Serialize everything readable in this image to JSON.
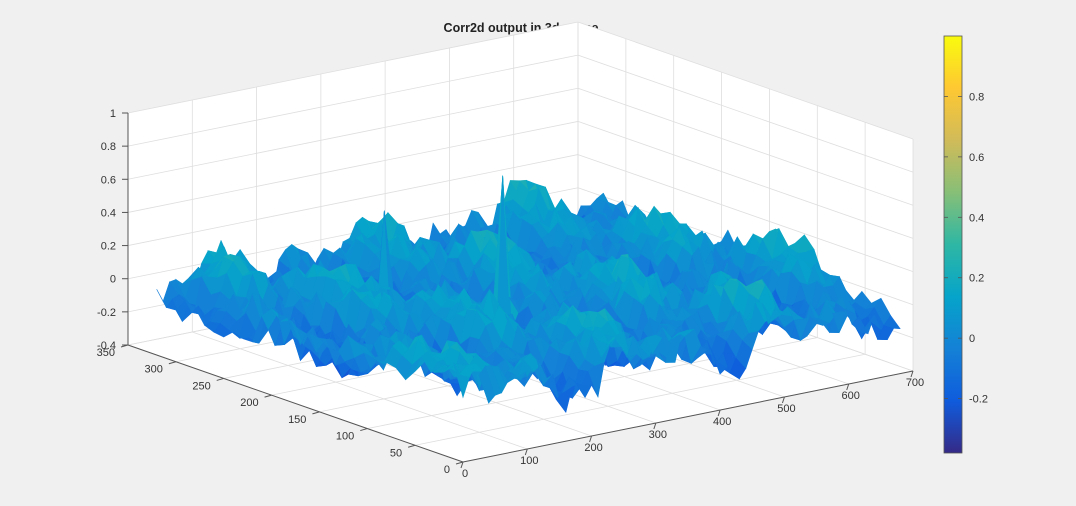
{
  "figure": {
    "background": "#f0f0f0",
    "axes_background": "#ffffff",
    "grid_color": "#dedede",
    "axis_color": "#555555"
  },
  "chart_data": {
    "type": "surface3d",
    "title": "Corr2d output in 3d space",
    "xlabel": "",
    "ylabel": "",
    "zlabel": "",
    "xlim": [
      0,
      700
    ],
    "ylim": [
      0,
      350
    ],
    "zlim": [
      -0.4,
      1
    ],
    "x_ticks": [
      "0",
      "100",
      "200",
      "300",
      "400",
      "500",
      "600",
      "700"
    ],
    "y_ticks": [
      "0",
      "50",
      "100",
      "150",
      "200",
      "250",
      "300",
      "350"
    ],
    "z_ticks": [
      "-0.4",
      "-0.2",
      "0",
      "0.2",
      "0.4",
      "0.6",
      "0.8",
      "1"
    ],
    "grid": true,
    "colormap": "parula",
    "colorbar": {
      "position": "right",
      "limits": [
        -0.38,
        1.0
      ],
      "ticks": [
        "-0.2",
        "0",
        "0.2",
        "0.4",
        "0.6",
        "0.8"
      ],
      "colors": [
        "#352a87",
        "#0f5cdd",
        "#1481d6",
        "#06a4ca",
        "#2eb7a4",
        "#87bf77",
        "#d1bb59",
        "#fec832",
        "#f9fb0e"
      ]
    },
    "surface_extent": {
      "x": [
        0,
        680
      ],
      "y": [
        0,
        320
      ]
    },
    "surface_baseline": 0.0,
    "surface_min": -0.38,
    "peaks": [
      {
        "x": 300,
        "y": 155,
        "z": 0.77
      },
      {
        "x": 220,
        "y": 225,
        "z": 0.48
      }
    ]
  }
}
